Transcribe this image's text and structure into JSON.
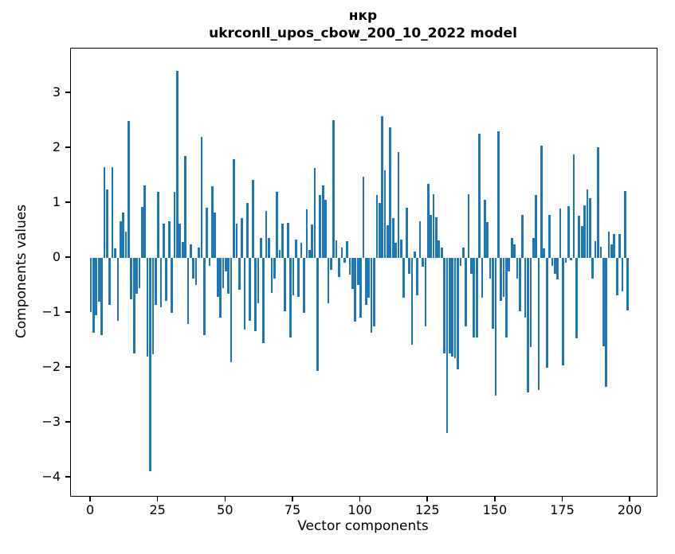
{
  "title": {
    "line1": "нкр",
    "line2": "ukrconll_upos_cbow_200_10_2022 model"
  },
  "axes": {
    "x_label": "Vector components",
    "y_label": "Components values"
  },
  "chart_data": {
    "type": "bar",
    "title": "нкр",
    "subtitle": "ukrconll_upos_cbow_200_10_2022 model",
    "xlabel": "Vector components",
    "ylabel": "Components values",
    "legend": null,
    "grid": false,
    "n_components": 200,
    "bar_width": 0.8,
    "color": "#1f77b4",
    "xlim": [
      -7.4,
      209.7
    ],
    "ylim": [
      -4.33,
      3.81
    ],
    "x_ticks": [
      0,
      25,
      50,
      75,
      100,
      125,
      150,
      175,
      200
    ],
    "y_ticks": [
      -4,
      -3,
      -2,
      -1,
      0,
      1,
      2,
      3
    ],
    "values": [
      -0.98,
      -1.36,
      -1.04,
      -0.8,
      -1.41,
      1.65,
      1.25,
      -0.85,
      1.65,
      0.18,
      -1.15,
      0.67,
      0.82,
      0.48,
      2.49,
      -0.75,
      -1.74,
      -0.65,
      -0.55,
      0.93,
      1.32,
      -1.8,
      -3.88,
      -1.75,
      -0.85,
      1.2,
      -0.9,
      0.62,
      -0.78,
      0.66,
      -1.0,
      1.2,
      3.4,
      0.62,
      0.29,
      1.85,
      -1.2,
      0.25,
      -0.37,
      -0.49,
      0.19,
      2.2,
      -1.4,
      0.91,
      -0.15,
      1.31,
      0.82,
      -0.71,
      -1.09,
      -0.55,
      -0.25,
      -0.65,
      -1.9,
      1.8,
      0.62,
      -0.58,
      0.73,
      -1.3,
      1.0,
      -1.15,
      1.42,
      -1.33,
      -0.83,
      0.36,
      -1.55,
      0.86,
      0.36,
      -0.63,
      -0.37,
      1.2,
      0.14,
      0.62,
      -0.97,
      0.64,
      -1.45,
      -0.68,
      0.34,
      -0.71,
      0.28,
      -1.0,
      0.89,
      0.14,
      0.61,
      1.64,
      -2.05,
      1.15,
      1.32,
      1.06,
      -0.83,
      -0.22,
      2.5,
      0.32,
      -0.34,
      0.19,
      -0.08,
      0.3,
      -0.3,
      -0.56,
      -1.16,
      -0.49,
      -1.09,
      1.48,
      -0.86,
      -0.72,
      -1.36,
      -1.24,
      1.14,
      1.0,
      2.58,
      1.6,
      0.6,
      2.37,
      0.73,
      0.28,
      1.93,
      0.33,
      -0.73,
      0.92,
      -0.29,
      -1.58,
      0.12,
      -0.68,
      0.67,
      -0.16,
      -1.24,
      1.35,
      0.78,
      1.16,
      0.74,
      0.32,
      0.19,
      -1.74,
      -3.18,
      -1.74,
      -1.79,
      -1.82,
      -2.03,
      -0.15,
      0.19,
      -1.24,
      1.16,
      -0.29,
      -1.45,
      -1.45,
      2.26,
      -0.73,
      1.06,
      0.65,
      -0.37,
      -1.29,
      -2.5,
      2.3,
      -0.78,
      -0.71,
      -1.45,
      -0.25,
      0.36,
      0.24,
      -0.37,
      -0.97,
      0.78,
      -1.09,
      -2.45,
      -1.62,
      0.36,
      1.15,
      -2.4,
      2.05,
      0.18,
      -2.0,
      0.79,
      -0.15,
      -0.29,
      -0.39,
      0.9,
      -1.95,
      -0.08,
      0.94,
      -0.05,
      1.89,
      -1.46,
      0.77,
      0.58,
      0.95,
      1.25,
      1.08,
      -0.37,
      0.3,
      2.02,
      0.21,
      -1.6,
      -2.35,
      0.48,
      0.24,
      0.43,
      -0.68,
      0.43,
      -0.61,
      1.22,
      -0.95
    ]
  }
}
